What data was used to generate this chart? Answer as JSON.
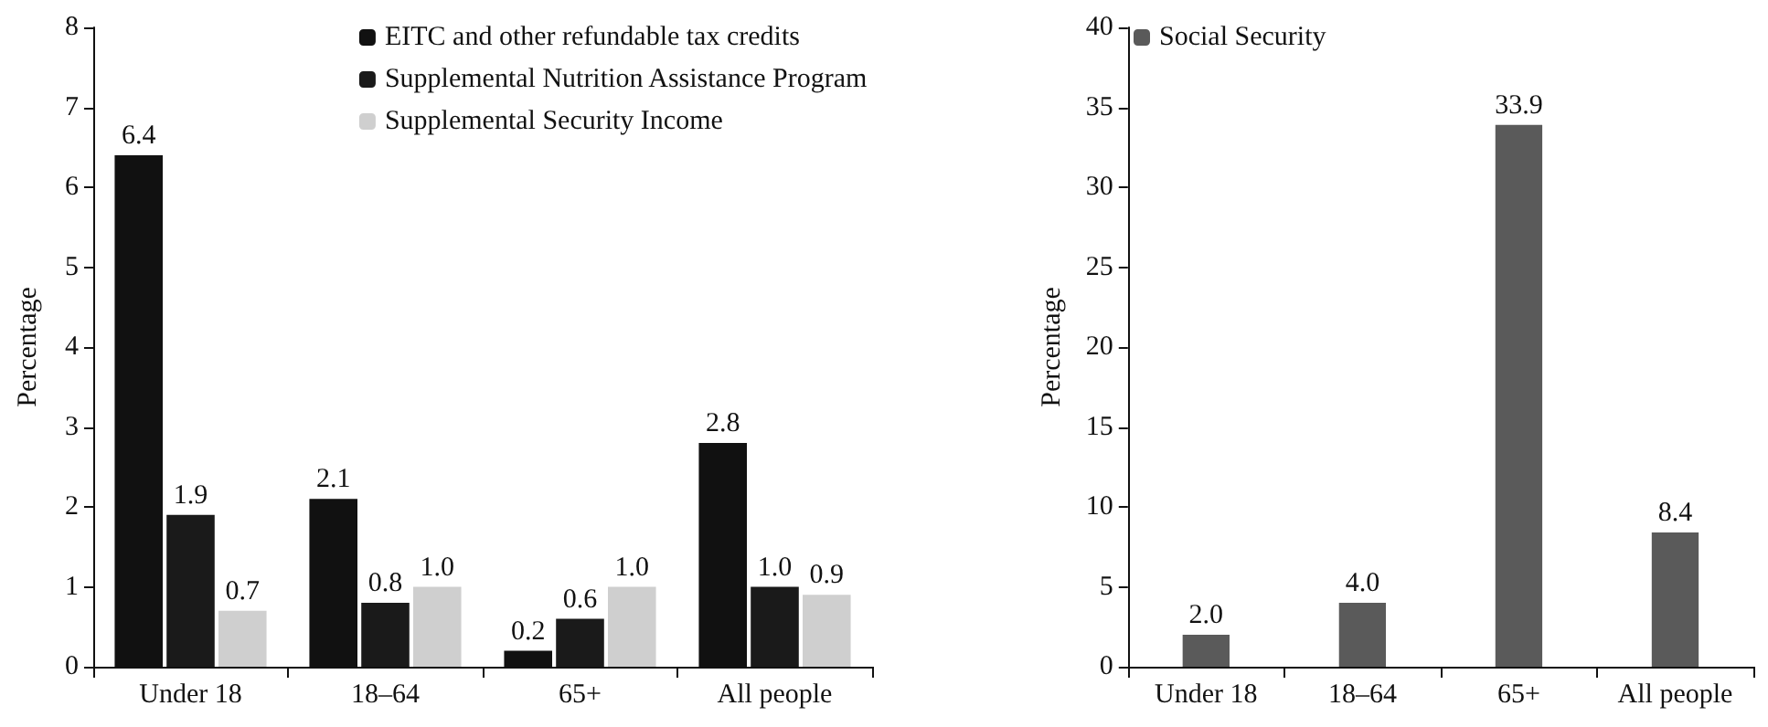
{
  "chart_data": [
    {
      "type": "bar",
      "ylabel": "Percentage",
      "categories": [
        "Under 18",
        "18–64",
        "65+",
        "All people"
      ],
      "ylim": [
        0,
        8
      ],
      "yticks": [
        0,
        1,
        2,
        3,
        4,
        5,
        6,
        7,
        8
      ],
      "grid": false,
      "legend": "top right",
      "series": [
        {
          "name": "EITC and other refundable tax credits",
          "color": "#111111",
          "values": [
            6.4,
            2.1,
            0.2,
            2.8
          ],
          "value_labels": [
            "6.4",
            "2.1",
            "0.2",
            "2.8"
          ]
        },
        {
          "name": "Supplemental Nutrition Assistance Program",
          "color": "#1a1a1a",
          "values": [
            1.9,
            0.8,
            0.6,
            1.0
          ],
          "value_labels": [
            "1.9",
            "0.8",
            "0.6",
            "1.0"
          ]
        },
        {
          "name": "Supplemental Security Income",
          "color": "#cfcfcf",
          "values": [
            0.7,
            1.0,
            1.0,
            0.9
          ],
          "value_labels": [
            "0.7",
            "1.0",
            "1.0",
            "0.9"
          ]
        }
      ]
    },
    {
      "type": "bar",
      "ylabel": "Percentage",
      "categories": [
        "Under 18",
        "18–64",
        "65+",
        "All people"
      ],
      "ylim": [
        0,
        40
      ],
      "yticks": [
        0,
        5,
        10,
        15,
        20,
        25,
        30,
        35,
        40
      ],
      "grid": false,
      "legend": "top left",
      "series": [
        {
          "name": "Social Security",
          "color": "#5a5a5a",
          "values": [
            2.0,
            4.0,
            33.9,
            8.4
          ],
          "value_labels": [
            "2.0",
            "4.0",
            "33.9",
            "8.4"
          ]
        }
      ]
    }
  ]
}
